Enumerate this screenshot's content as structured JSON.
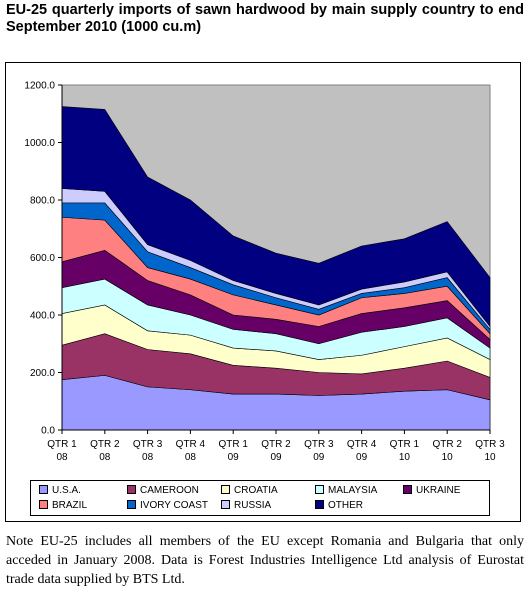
{
  "title": "EU-25 quarterly imports of sawn hardwood by main supply country to end September 2010 (1000 cu.m)",
  "note": "Note EU-25 includes all members of the EU except Romania and Bulgaria that only acceded in January 2008. Data is Forest Industries Intelligence Ltd analysis of Eurostat trade data supplied by BTS Ltd.",
  "chart_data": {
    "type": "area",
    "stacked": true,
    "categories": [
      "QTR 1 08",
      "QTR 2 08",
      "QTR 3 08",
      "QTR 4 08",
      "QTR 1 09",
      "QTR 2 09",
      "QTR 3 09",
      "QTR 4 09",
      "QTR 1 10",
      "QTR 2 10",
      "QTR 3 10"
    ],
    "ylim": [
      0,
      1200
    ],
    "yticks": [
      "0.0",
      "200.0",
      "400.0",
      "600.0",
      "800.0",
      "1000.0",
      "1200.0"
    ],
    "grid": false,
    "plot_background": "#c0c0c0",
    "legend_position": "bottom",
    "series": [
      {
        "name": "U.S.A.",
        "color": "#9999ff",
        "values": [
          175,
          190,
          150,
          140,
          125,
          125,
          120,
          125,
          135,
          140,
          105
        ]
      },
      {
        "name": "CAMEROON",
        "color": "#993366",
        "values": [
          120,
          145,
          130,
          125,
          100,
          90,
          80,
          70,
          80,
          100,
          78
        ]
      },
      {
        "name": "CROATIA",
        "color": "#ffffcc",
        "values": [
          110,
          100,
          65,
          65,
          60,
          60,
          45,
          65,
          75,
          80,
          62
        ]
      },
      {
        "name": "MALAYSIA",
        "color": "#ccffff",
        "values": [
          90,
          90,
          90,
          70,
          65,
          60,
          55,
          80,
          70,
          70,
          40
        ]
      },
      {
        "name": "UKRAINE",
        "color": "#660066",
        "values": [
          90,
          100,
          85,
          70,
          50,
          50,
          60,
          65,
          65,
          60,
          30
        ]
      },
      {
        "name": "BRAZIL",
        "color": "#ff8080",
        "values": [
          155,
          105,
          45,
          55,
          70,
          50,
          40,
          55,
          50,
          50,
          20
        ]
      },
      {
        "name": "IVORY COAST",
        "color": "#0066cc",
        "values": [
          50,
          60,
          55,
          40,
          35,
          25,
          20,
          15,
          20,
          30,
          15
        ]
      },
      {
        "name": "RUSSIA",
        "color": "#ccccff",
        "values": [
          50,
          40,
          25,
          25,
          15,
          15,
          15,
          15,
          20,
          20,
          10
        ]
      },
      {
        "name": "OTHER",
        "color": "#000080",
        "values": [
          285,
          285,
          235,
          210,
          155,
          140,
          145,
          150,
          150,
          175,
          170
        ]
      }
    ]
  }
}
